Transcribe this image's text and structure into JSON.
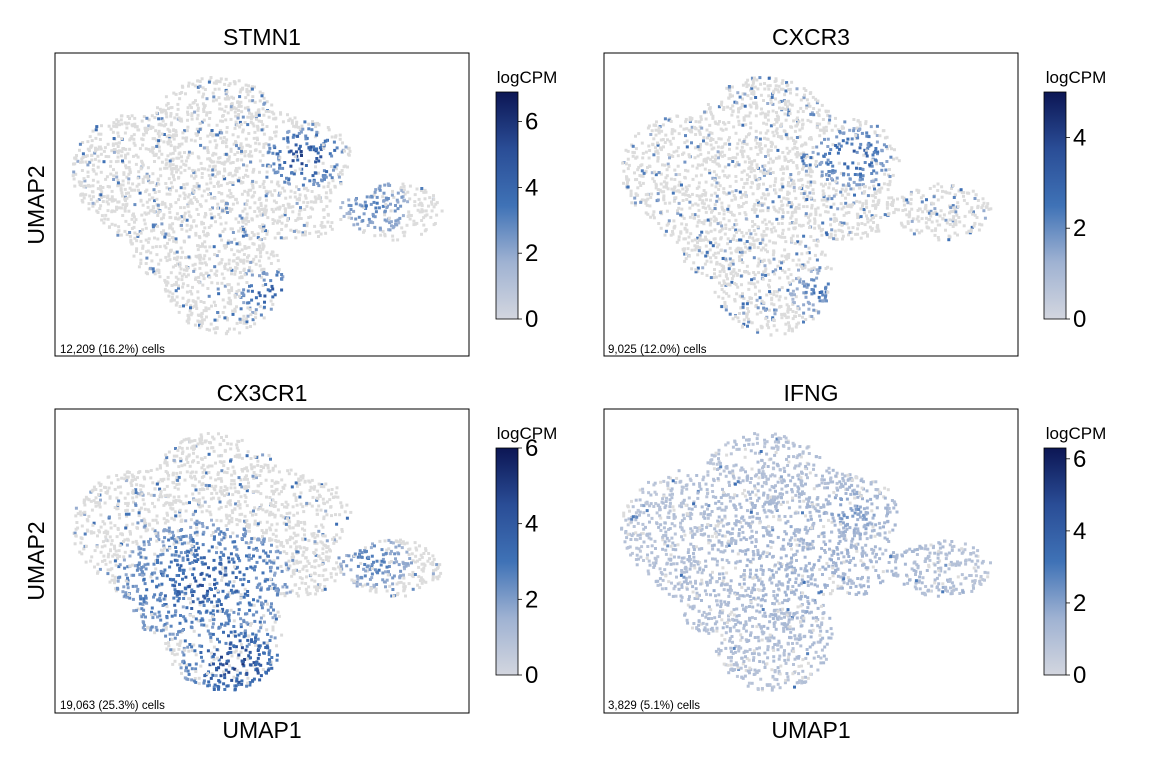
{
  "figure": {
    "layout": "2x2 grid of UMAP feature plots",
    "axis_labels": {
      "umap1": "UMAP1",
      "umap2": "UMAP2"
    },
    "colorbar_label": "logCPM",
    "colors": {
      "background_points": "#dcdcdc",
      "colormap": [
        "#d3d6df",
        "#9fb2d2",
        "#3f72b6",
        "#2a4d96",
        "#0c1654"
      ]
    }
  },
  "chart_data": [
    {
      "type": "scatter",
      "title": "STMN1",
      "xlabel": "",
      "ylabel": "UMAP2",
      "annotation": "12,209 (16.2%) cells",
      "colorbar": {
        "label": "logCPM",
        "min": 0,
        "max": 6.9,
        "ticks": [
          0,
          2,
          4,
          6
        ]
      },
      "ticks_shown": false,
      "grid": false,
      "expression_hotspots": [
        {
          "region": "upper-right cluster",
          "intensity": "very high"
        },
        {
          "region": "lower-middle lobe",
          "intensity": "high"
        },
        {
          "region": "right island",
          "intensity": "moderate"
        }
      ]
    },
    {
      "type": "scatter",
      "title": "CXCR3",
      "xlabel": "",
      "ylabel": "",
      "annotation": "9,025 (12.0%) cells",
      "colorbar": {
        "label": "logCPM",
        "min": 0,
        "max": 5.0,
        "ticks": [
          0,
          2,
          4
        ]
      },
      "ticks_shown": false,
      "grid": false,
      "expression_hotspots": [
        {
          "region": "upper-right cluster",
          "intensity": "high"
        },
        {
          "region": "lower-middle lobe",
          "intensity": "moderate"
        }
      ]
    },
    {
      "type": "scatter",
      "title": "CX3CR1",
      "xlabel": "UMAP1",
      "ylabel": "UMAP2",
      "annotation": "19,063 (25.3%) cells",
      "colorbar": {
        "label": "logCPM",
        "min": 0,
        "max": 6.0,
        "ticks": [
          0,
          2,
          4,
          6
        ]
      },
      "ticks_shown": false,
      "grid": false,
      "expression_hotspots": [
        {
          "region": "lower lobe",
          "intensity": "very high"
        },
        {
          "region": "central band",
          "intensity": "high"
        },
        {
          "region": "right island",
          "intensity": "moderate"
        }
      ]
    },
    {
      "type": "scatter",
      "title": "IFNG",
      "xlabel": "UMAP1",
      "ylabel": "",
      "annotation": "3,829 (5.1%) cells",
      "colorbar": {
        "label": "logCPM",
        "min": 0,
        "max": 6.3,
        "ticks": [
          0,
          2,
          4,
          6
        ]
      },
      "ticks_shown": false,
      "grid": false,
      "expression_hotspots": [
        {
          "region": "upper-right cluster",
          "intensity": "low-moderate"
        },
        {
          "region": "scattered",
          "intensity": "low"
        }
      ]
    }
  ]
}
